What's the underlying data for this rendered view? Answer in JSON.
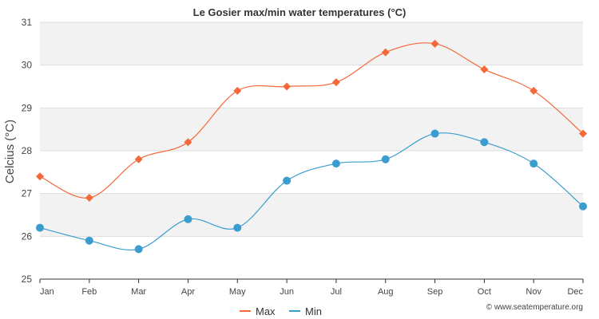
{
  "chart_data": {
    "type": "line",
    "title": "Le Gosier max/min water temperatures (°C)",
    "ylabel": "Celcius (°C)",
    "xlabel": "",
    "categories": [
      "Jan",
      "Feb",
      "Mar",
      "Apr",
      "May",
      "Jun",
      "Jul",
      "Aug",
      "Sep",
      "Oct",
      "Nov",
      "Dec"
    ],
    "y_ticks": [
      "25",
      "26",
      "27",
      "28",
      "29",
      "30",
      "31"
    ],
    "ylim": [
      25,
      31
    ],
    "grid": "horizontal bands",
    "legend_position": "bottom-center",
    "series": [
      {
        "name": "Max",
        "color": "#f4683a",
        "marker": "diamond",
        "values": [
          27.4,
          26.9,
          27.8,
          28.2,
          29.4,
          29.5,
          29.6,
          30.3,
          30.5,
          29.9,
          29.4,
          28.4
        ]
      },
      {
        "name": "Min",
        "color": "#3a9ccf",
        "marker": "circle",
        "values": [
          26.2,
          25.9,
          25.7,
          26.4,
          26.2,
          27.3,
          27.7,
          27.8,
          28.4,
          28.2,
          27.7,
          26.7
        ]
      }
    ]
  },
  "credit": "© www.seatemperature.org"
}
